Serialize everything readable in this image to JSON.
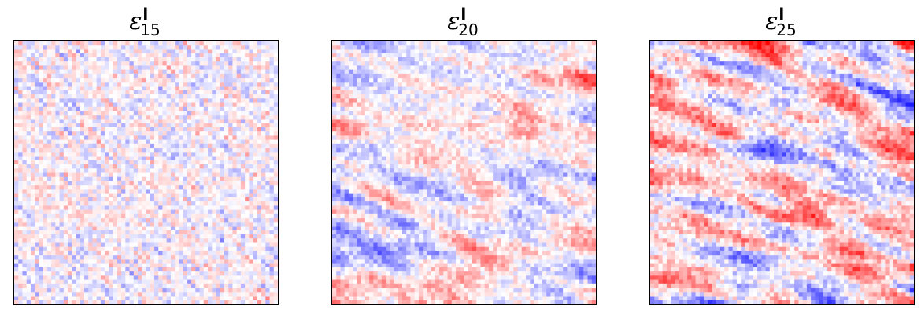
{
  "chart_data": [
    {
      "type": "heatmap",
      "title": {
        "symbol": "ε",
        "superscript": "l",
        "subscript": "15"
      },
      "colormap": "bwr",
      "grid_size": 64,
      "intensity": 0.32,
      "smoothness": 0.15,
      "seed": 15,
      "xlabel": "",
      "ylabel": "",
      "ticks": "none"
    },
    {
      "type": "heatmap",
      "title": {
        "symbol": "ε",
        "superscript": "l",
        "subscript": "20"
      },
      "colormap": "bwr",
      "grid_size": 64,
      "intensity": 0.62,
      "smoothness": 0.6,
      "seed": 20,
      "xlabel": "",
      "ylabel": "",
      "ticks": "none"
    },
    {
      "type": "heatmap",
      "title": {
        "symbol": "ε",
        "superscript": "l",
        "subscript": "25"
      },
      "colormap": "bwr",
      "grid_size": 64,
      "intensity": 0.95,
      "smoothness": 0.7,
      "seed": 25,
      "xlabel": "",
      "ylabel": "",
      "ticks": "none"
    }
  ],
  "colors": {
    "negative": "#0000ff",
    "neutral": "#ffffff",
    "positive": "#ff0000"
  }
}
